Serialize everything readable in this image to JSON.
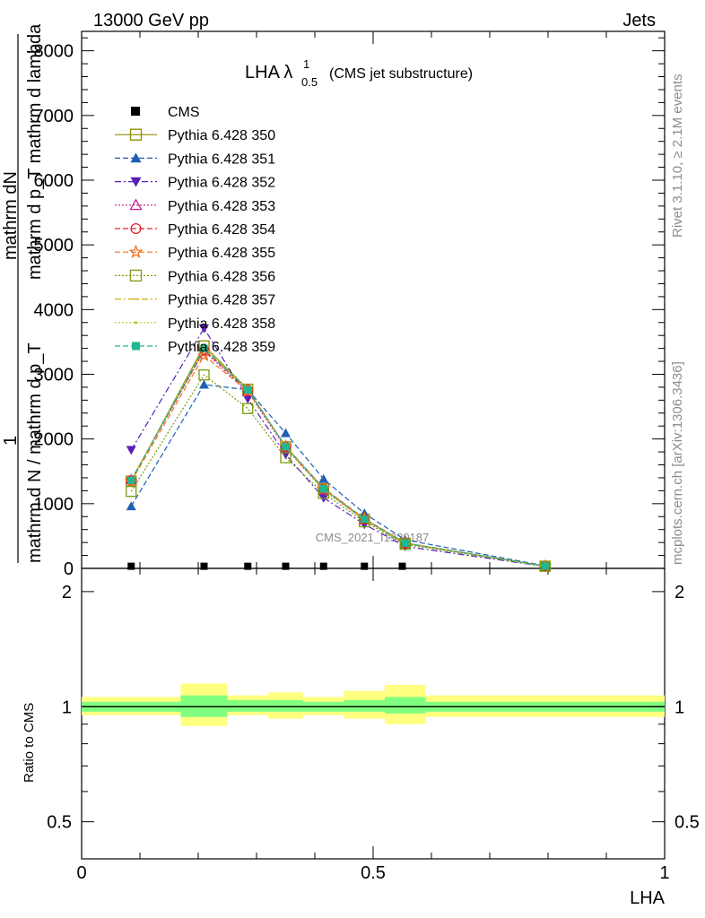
{
  "header": {
    "left": "13000 GeV pp",
    "right": "Jets"
  },
  "side": {
    "rivet": "Rivet 3.1.10, ≥ 2.1M events",
    "mcplots": "mcplots.cern.ch [arXiv:1306.3436]"
  },
  "chart_data": {
    "type": "line",
    "title": {
      "main": "LHA λ",
      "sup": "1",
      "sub": "0.5",
      "tail": "(CMS jet substructure)"
    },
    "watermark": "CMS_2021_I1920187",
    "ylabel_main_lines": [
      "mathrm dN",
      "mathrm d p_T mathrm d lambda",
      "1",
      "mathrm d N / mathrm d p_T"
    ],
    "ylabel_ratio": "Ratio to CMS",
    "xlabel": "LHA",
    "xlim": [
      0,
      1
    ],
    "ylim_main": [
      0,
      8300
    ],
    "ylim_ratio": [
      0.4,
      2.3
    ],
    "log_scale_ratio": true,
    "x_ticks": [
      0,
      0.5,
      1
    ],
    "x_tick_labels": [
      "0",
      "0.5",
      "1"
    ],
    "y_ticks_main": [
      0,
      1000,
      2000,
      3000,
      4000,
      5000,
      6000,
      7000,
      8000
    ],
    "y_tick_labels_main": [
      "0",
      "1000",
      "2000",
      "3000",
      "4000",
      "5000",
      "6000",
      "7000",
      "8000"
    ],
    "y_ticks_ratio": [
      0.5,
      1,
      2
    ],
    "y_tick_labels_ratio": [
      "0.5",
      "1",
      "2"
    ],
    "x": [
      0.085,
      0.21,
      0.285,
      0.35,
      0.415,
      0.485,
      0.555,
      0.795
    ],
    "data": {
      "name": "CMS",
      "x": [
        0.085,
        0.21,
        0.285,
        0.35,
        0.415,
        0.485,
        0.55
      ],
      "y": [
        5,
        5,
        5,
        5,
        5,
        5,
        5
      ]
    },
    "ratio_bands": [
      {
        "x": [
          0,
          0.17
        ],
        "inner": [
          0.97,
          1.03
        ],
        "outer": [
          0.95,
          1.06
        ]
      },
      {
        "x": [
          0.17,
          0.25
        ],
        "inner": [
          0.94,
          1.07
        ],
        "outer": [
          0.89,
          1.15
        ]
      },
      {
        "x": [
          0.25,
          0.32
        ],
        "inner": [
          0.97,
          1.04
        ],
        "outer": [
          0.95,
          1.07
        ]
      },
      {
        "x": [
          0.32,
          0.38
        ],
        "inner": [
          0.97,
          1.04
        ],
        "outer": [
          0.93,
          1.09
        ]
      },
      {
        "x": [
          0.38,
          0.45
        ],
        "inner": [
          0.97,
          1.03
        ],
        "outer": [
          0.95,
          1.06
        ]
      },
      {
        "x": [
          0.45,
          0.52
        ],
        "inner": [
          0.97,
          1.04
        ],
        "outer": [
          0.93,
          1.1
        ]
      },
      {
        "x": [
          0.52,
          0.59
        ],
        "inner": [
          0.96,
          1.06
        ],
        "outer": [
          0.9,
          1.14
        ]
      },
      {
        "x": [
          0.59,
          1.0
        ],
        "inner": [
          0.97,
          1.03
        ],
        "outer": [
          0.94,
          1.07
        ]
      }
    ],
    "series": [
      {
        "name": "Pythia 6.428 350",
        "color": "#8a8a00",
        "marker": "square-open",
        "dash": "",
        "y": [
          1350,
          3440,
          2770,
          1880,
          1230,
          760,
          390,
          35
        ]
      },
      {
        "name": "Pythia 6.428 351",
        "color": "#1f5fb4",
        "marker": "triangle-up",
        "dash": "6,3",
        "y": [
          960,
          2840,
          2760,
          2090,
          1380,
          850,
          440,
          40
        ]
      },
      {
        "name": "Pythia 6.428 352",
        "color": "#5a1fb4",
        "marker": "triangle-down",
        "dash": "7,3,2,3",
        "y": [
          1830,
          3710,
          2620,
          1760,
          1090,
          680,
          340,
          30
        ]
      },
      {
        "name": "Pythia 6.428 353",
        "color": "#c0208f",
        "marker": "triangle-open",
        "dash": "2,2",
        "y": [
          1370,
          3360,
          2730,
          1860,
          1210,
          750,
          385,
          35
        ]
      },
      {
        "name": "Pythia 6.428 354",
        "color": "#e0202a",
        "marker": "circle-open",
        "dash": "6,3",
        "y": [
          1360,
          3380,
          2760,
          1880,
          1230,
          760,
          390,
          35
        ]
      },
      {
        "name": "Pythia 6.428 355",
        "color": "#f07020",
        "marker": "star-open",
        "dash": "6,3",
        "y": [
          1340,
          3290,
          2740,
          1890,
          1240,
          770,
          395,
          35
        ]
      },
      {
        "name": "Pythia 6.428 356",
        "color": "#7a9a10",
        "marker": "square-open",
        "dash": "2,2",
        "y": [
          1190,
          2990,
          2470,
          1710,
          1160,
          720,
          370,
          32
        ]
      },
      {
        "name": "Pythia 6.428 357",
        "color": "#d0b000",
        "marker": "tick",
        "dash": "7,3,2,3",
        "y": [
          1360,
          3400,
          2760,
          1870,
          1220,
          750,
          385,
          35
        ]
      },
      {
        "name": "Pythia 6.428 358",
        "color": "#b0d020",
        "marker": "dot",
        "dash": "2,2",
        "y": [
          1350,
          3420,
          2770,
          1880,
          1225,
          755,
          388,
          35
        ]
      },
      {
        "name": "Pythia 6.428 359",
        "color": "#20b890",
        "marker": "square-filled",
        "dash": "6,3",
        "y": [
          1360,
          3400,
          2760,
          1880,
          1230,
          760,
          390,
          35
        ]
      }
    ]
  }
}
